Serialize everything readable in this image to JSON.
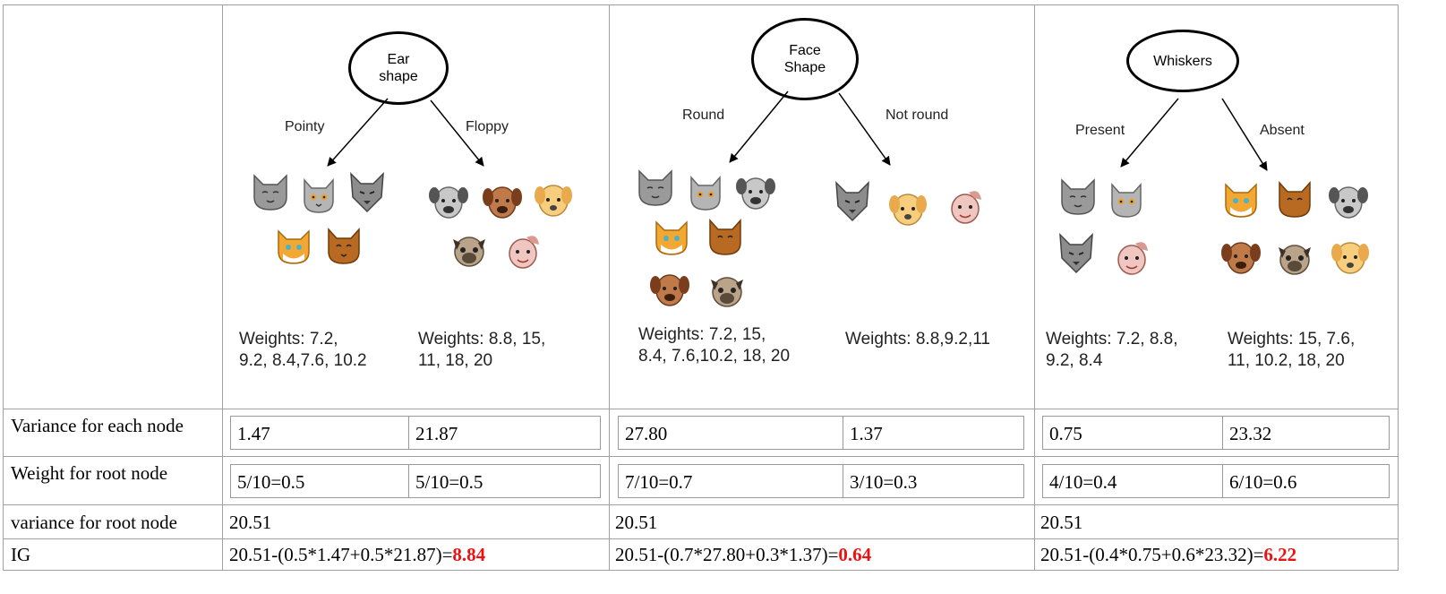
{
  "columns": [
    {
      "root": "Ear shape",
      "root_lines": [
        "Ear",
        "shape"
      ],
      "left_branch": "Pointy",
      "right_branch": "Floppy",
      "left_weights": [
        "Weights: 7.2,",
        "9.2, 8.4,7.6, 10.2"
      ],
      "right_weights": [
        "Weights: 8.8, 15,",
        "11, 18, 20"
      ],
      "variance": [
        "1.47",
        "21.87"
      ],
      "weight": [
        "5/10=0.5",
        "5/10=0.5"
      ],
      "root_variance": "20.51",
      "ig_expr": "20.51-(0.5*1.47+0.5*21.87)=",
      "ig_value": "8.84"
    },
    {
      "root": "Face Shape",
      "root_lines": [
        "Face",
        "Shape"
      ],
      "left_branch": "Round",
      "right_branch": "Not round",
      "left_weights": [
        "Weights: 7.2, 15,",
        "8.4, 7.6,10.2, 18, 20"
      ],
      "right_weights": [
        "Weights: 8.8,9.2,11"
      ],
      "variance": [
        "27.80",
        "1.37"
      ],
      "weight": [
        "7/10=0.7",
        "3/10=0.3"
      ],
      "root_variance": "20.51",
      "ig_expr": "20.51-(0.7*27.80+0.3*1.37)=",
      "ig_value": "0.64"
    },
    {
      "root": "Whiskers",
      "root_lines": [
        "Whiskers"
      ],
      "left_branch": "Present",
      "right_branch": "Absent",
      "left_weights": [
        "Weights: 7.2, 8.8,",
        "9.2, 8.4"
      ],
      "right_weights": [
        "Weights: 15, 7.6,",
        "11, 10.2, 18, 20"
      ],
      "variance": [
        "0.75",
        "23.32"
      ],
      "weight": [
        "4/10=0.4",
        "6/10=0.6"
      ],
      "root_variance": "20.51",
      "ig_expr": "20.51-(0.4*0.75+0.6*23.32)=",
      "ig_value": "6.22"
    }
  ],
  "row_labels": {
    "variance": "Variance for each node",
    "weight": "Weight for root node",
    "root_variance": "variance for root node",
    "ig": "IG"
  },
  "colors": {
    "ig_highlight": "#ee1111",
    "grid": "#a0a0a0"
  },
  "icons": {
    "animals": [
      "gray-cat-icon",
      "tabby-cat-icon",
      "wolf-cat-icon",
      "orange-cat-icon",
      "brown-cat-icon",
      "gray-dog-icon",
      "brown-dog-icon",
      "yellow-dog-icon",
      "pug-dog-icon",
      "pink-dog-icon"
    ]
  }
}
